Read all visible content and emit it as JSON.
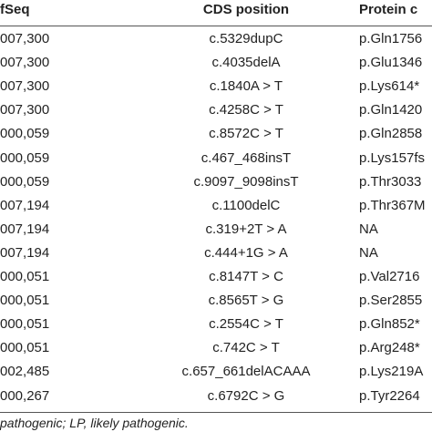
{
  "table": {
    "header": [
      "fSeq",
      "CDS position",
      "Protein c"
    ],
    "rows": [
      [
        "007,300",
        "c.5329dupC",
        "p.Gln1756"
      ],
      [
        "007,300",
        "c.4035delA",
        "p.Glu1346"
      ],
      [
        "007,300",
        "c.1840A > T",
        "p.Lys614*"
      ],
      [
        "007,300",
        "c.4258C > T",
        "p.Gln1420"
      ],
      [
        "000,059",
        "c.8572C > T",
        "p.Gln2858"
      ],
      [
        "000,059",
        "c.467_468insT",
        "p.Lys157fs"
      ],
      [
        "000,059",
        "c.9097_9098insT",
        "p.Thr3033"
      ],
      [
        "007,194",
        "c.1100delC",
        "p.Thr367M"
      ],
      [
        "007,194",
        "c.319+2T > A",
        "NA"
      ],
      [
        "007,194",
        "c.444+1G > A",
        "NA"
      ],
      [
        "000,051",
        "c.8147T > C",
        "p.Val2716"
      ],
      [
        "000,051",
        "c.8565T > G",
        "p.Ser2855"
      ],
      [
        "000,051",
        "c.2554C > T",
        "p.Gln852*"
      ],
      [
        "000,051",
        "c.742C > T",
        "p.Arg248*"
      ],
      [
        "002,485",
        "c.657_661delACAAA",
        "p.Lys219A"
      ],
      [
        "000,267",
        "c.6792C > G",
        "p.Tyr2264"
      ]
    ],
    "footnote": "pathogenic; LP, likely pathogenic."
  }
}
